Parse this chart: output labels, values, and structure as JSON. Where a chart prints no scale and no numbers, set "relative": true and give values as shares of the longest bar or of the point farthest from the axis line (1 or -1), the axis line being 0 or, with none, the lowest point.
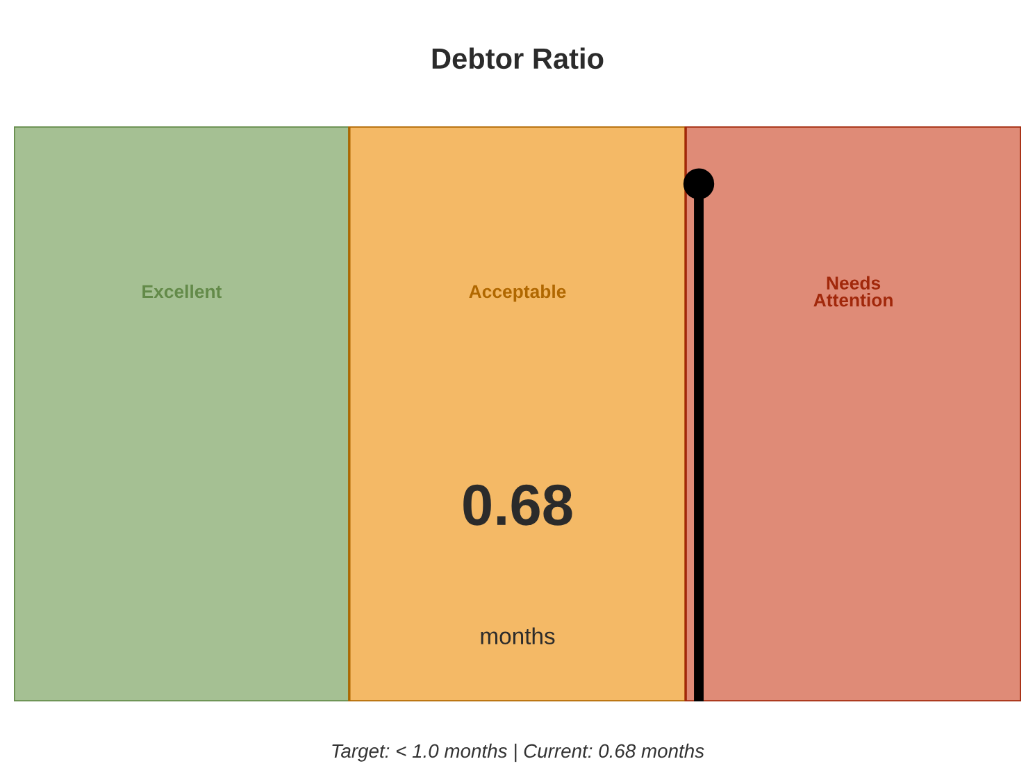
{
  "chart_data": {
    "type": "bar",
    "orientation": "horizontal",
    "stacked": true,
    "relative": true,
    "title": "Debtor Ratio",
    "categories": [
      null
    ],
    "series": [
      {
        "name": "Excellent",
        "color": "#a5c093",
        "values": [
          0.333
        ]
      },
      {
        "name": "Acceptable",
        "color": "#f4b966",
        "values": [
          0.334
        ]
      },
      {
        "name": "Needs\nAttention",
        "color": "#df8b77",
        "values": [
          0.333
        ]
      }
    ],
    "ref_lines": [
      {
        "axis": "x",
        "value": 0.68,
        "label": "0.68",
        "color": "#000000"
      }
    ],
    "annotations": [
      "months",
      "Target: < 1.0 months | Current: 0.68 months"
    ]
  }
}
